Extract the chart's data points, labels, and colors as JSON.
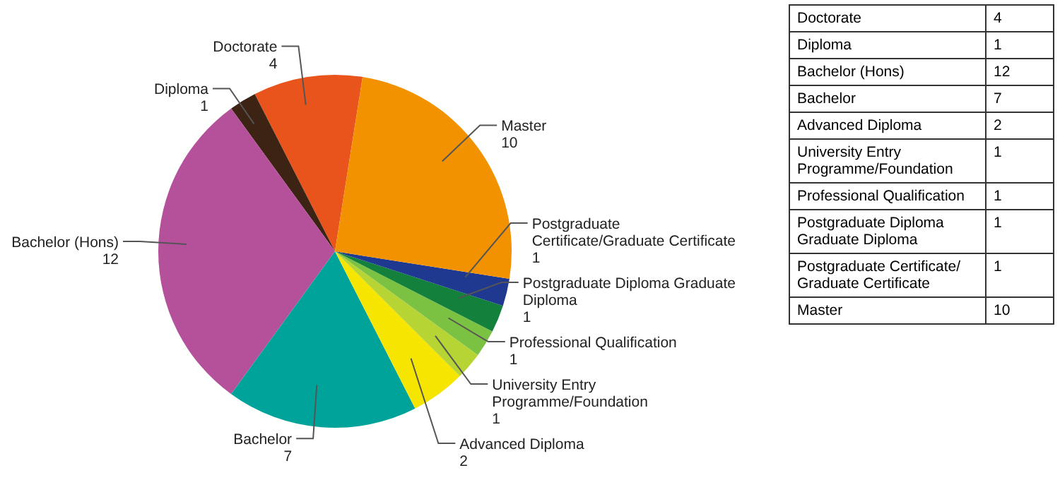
{
  "chart_data": [
    {
      "type": "pie",
      "categories": [
        "Doctorate",
        "Diploma",
        "Bachelor (Hons)",
        "Bachelor",
        "Advanced Diploma",
        "University Entry Programme/Foundation",
        "Professional Qualification",
        "Postgraduate Diploma Graduate Diploma",
        "Postgraduate Certificate/Graduate Certificate",
        "Master"
      ],
      "values": [
        4,
        1,
        12,
        7,
        2,
        1,
        1,
        1,
        1,
        10
      ],
      "colors": [
        "#e8541c",
        "#3d2314",
        "#b5509a",
        "#00a39a",
        "#f6e500",
        "#b6d433",
        "#7cc242",
        "#13803c",
        "#1f3990",
        "#f39200"
      ],
      "data_labels": true
    },
    {
      "type": "other",
      "categories": [
        "Doctorate",
        "Diploma",
        "Bachelor (Hons)",
        "Bachelor",
        "Advanced Diploma",
        "University Entry Programme/Foundation",
        "Professional Qualification",
        "Postgraduate Diploma Graduate Diploma",
        "Postgraduate Certificate/ Graduate Certificate",
        "Master"
      ],
      "values": [
        4,
        1,
        12,
        7,
        2,
        1,
        1,
        1,
        1,
        10
      ],
      "data_labels": true
    }
  ]
}
